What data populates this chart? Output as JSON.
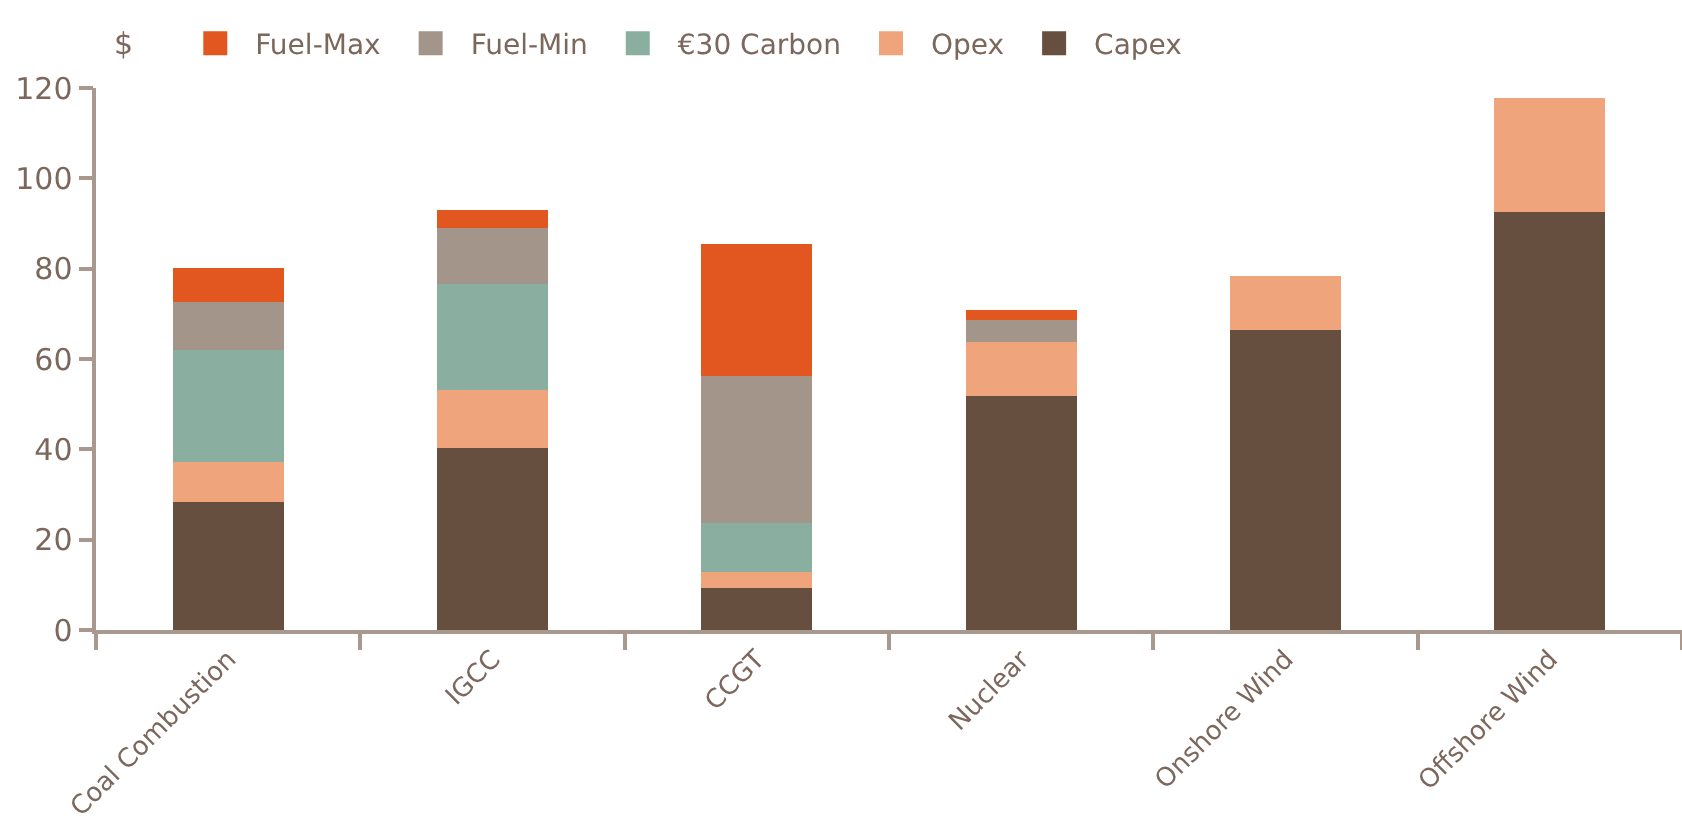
{
  "chart_data": {
    "type": "bar",
    "stacked": true,
    "ylabel": "$",
    "categories": [
      "Coal Combustion",
      "IGCC",
      "CCGT",
      "Nuclear",
      "Onshore Wind",
      "Offshore Wind"
    ],
    "series": [
      {
        "name": "Capex",
        "color": "#674f40",
        "values": [
          28.3,
          40.4,
          9.3,
          51.8,
          66.4,
          92.5
        ]
      },
      {
        "name": "Opex",
        "color": "#f0a47b",
        "values": [
          8.9,
          12.7,
          3.5,
          12.0,
          12.0,
          25.3
        ]
      },
      {
        "name": "€30 Carbon",
        "color": "#8aae9f",
        "values": [
          24.8,
          23.5,
          10.8,
          null,
          null,
          null
        ]
      },
      {
        "name": "Fuel-Min",
        "color": "#a3958a",
        "values": [
          10.6,
          12.4,
          32.6,
          4.8,
          null,
          null
        ]
      },
      {
        "name": "Fuel-Max",
        "color": "#e2561f",
        "values": [
          7.5,
          4.0,
          29.3,
          2.2,
          null,
          null
        ]
      }
    ],
    "ylim": [
      0,
      120
    ],
    "yticks": [
      0,
      20,
      40,
      60,
      80,
      100,
      120
    ],
    "legend": "top"
  }
}
